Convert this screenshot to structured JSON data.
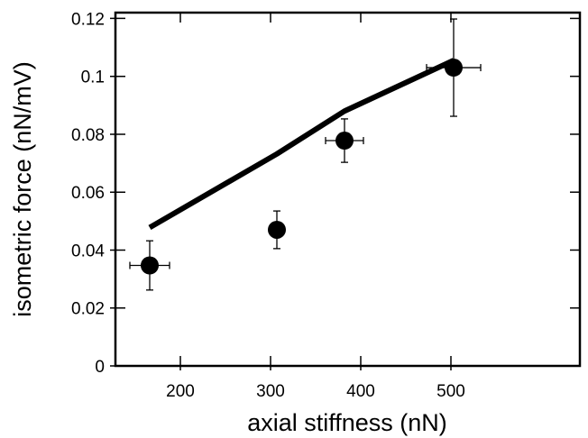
{
  "chart_data": {
    "type": "scatter",
    "xlabel": "axial stiffness (nN)",
    "ylabel": "isometric force (nN/mV)",
    "xlim": [
      128,
      643
    ],
    "ylim": [
      0,
      0.122
    ],
    "x_ticks": [
      {
        "value": 200,
        "label": "200"
      },
      {
        "value": 300,
        "label": "300"
      },
      {
        "value": 400,
        "label": "400"
      },
      {
        "value": 500,
        "label": "500"
      }
    ],
    "y_ticks": [
      {
        "value": 0,
        "label": "0"
      },
      {
        "value": 0.02,
        "label": "0.02"
      },
      {
        "value": 0.04,
        "label": "0.04"
      },
      {
        "value": 0.06,
        "label": "0.06"
      },
      {
        "value": 0.08,
        "label": "0.08"
      },
      {
        "value": 0.1,
        "label": "0.1"
      },
      {
        "value": 0.12,
        "label": "0.12"
      }
    ],
    "grid": false,
    "series": [
      {
        "kind": "points",
        "points": [
          {
            "x": 166,
            "y": 0.0347,
            "x_err": 22,
            "y_err_low": 0.0085,
            "y_err_high": 0.0085
          },
          {
            "x": 307,
            "y": 0.047,
            "x_err": 8,
            "y_err_low": 0.0065,
            "y_err_high": 0.0065
          },
          {
            "x": 382,
            "y": 0.0778,
            "x_err": 21,
            "y_err_low": 0.0075,
            "y_err_high": 0.0075
          },
          {
            "x": 503,
            "y": 0.103,
            "x_err": 30,
            "y_err_low": 0.0168,
            "y_err_high": 0.0168
          }
        ]
      },
      {
        "kind": "line",
        "points": [
          {
            "x": 166,
            "y": 0.0478
          },
          {
            "x": 307,
            "y": 0.0732
          },
          {
            "x": 382,
            "y": 0.088
          },
          {
            "x": 503,
            "y": 0.1055
          }
        ]
      }
    ]
  }
}
